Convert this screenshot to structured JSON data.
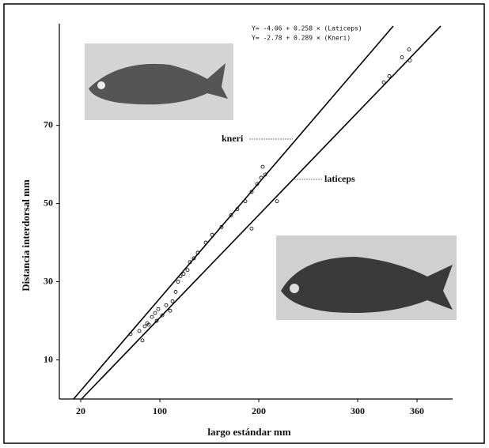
{
  "chart_data": {
    "type": "scatter",
    "x_label": "largo estándar mm",
    "y_label": "Distancia interdorsal mm",
    "annotations": [
      "Y= -4.06 + 0.258 × (Laticeps)",
      "Y= -2.78 + 0.289 × (Kneri)"
    ],
    "xlim": [
      -1.6,
      396
    ],
    "ylim": [
      0,
      96
    ],
    "xticks": [
      20,
      100,
      200,
      300,
      360
    ],
    "yticks": [
      10,
      30,
      50,
      70
    ],
    "color": "#000000",
    "lines": [
      {
        "name": "kneri",
        "x": [
          12.8,
          336
        ],
        "values": [
          0,
          95.4
        ]
      },
      {
        "name": "laticeps",
        "x": [
          20.8,
          384
        ],
        "values": [
          0,
          95.4
        ]
      }
    ],
    "points": {
      "x": [
        70.4,
        79.2,
        82.4,
        84.8,
        87.2,
        88.8,
        92,
        95.2,
        96.8,
        98.4,
        102.4,
        106.4,
        110.4,
        112.8,
        116,
        118.4,
        120.8,
        124,
        128,
        130.4,
        134.4,
        138.4,
        146.4,
        152.8,
        162.4,
        172,
        178.4,
        186.4,
        192.8,
        198.4,
        202.4,
        206.4,
        204,
        218.4,
        192.8,
        326.4,
        332,
        344.8,
        352,
        352.8
      ],
      "values": [
        16.6,
        17.4,
        15,
        18.6,
        19.4,
        19,
        21,
        22,
        20,
        23,
        21.4,
        24,
        22.6,
        25,
        27.4,
        30,
        31.4,
        32,
        33,
        35,
        36,
        37.4,
        40,
        42,
        44,
        47,
        48.6,
        50.6,
        53,
        55,
        56.6,
        57.4,
        59.4,
        50.6,
        43.6,
        81,
        82.6,
        87.4,
        89.4,
        86.6
      ]
    }
  }
}
